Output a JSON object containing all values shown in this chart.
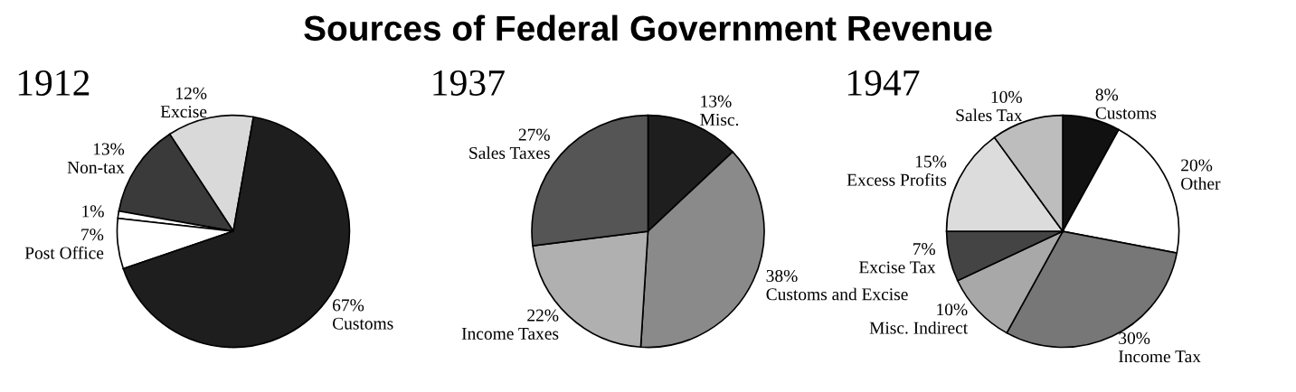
{
  "chart_data": [
    {
      "type": "other",
      "title": "Sources of Federal Government Revenue"
    },
    {
      "type": "pie",
      "title": "1912",
      "categories": [
        "Excise",
        "Non-tax",
        null,
        "Post Office",
        "Customs"
      ],
      "values": [
        12,
        13,
        1,
        7,
        67
      ],
      "value_labels": [
        "12%",
        "13%",
        "1%",
        "7%",
        "67%"
      ],
      "colors": [
        "#d9d9d9",
        "#3a3a3a",
        "#ffffff",
        "#ffffff",
        "#1e1e1e"
      ]
    },
    {
      "type": "pie",
      "title": "1937",
      "categories": [
        "Misc.",
        "Customs and Excise",
        "Income Taxes",
        "Sales Taxes"
      ],
      "values": [
        13,
        38,
        22,
        27
      ],
      "value_labels": [
        "13%",
        "38%",
        "22%",
        "27%"
      ],
      "colors": [
        "#1e1e1e",
        "#8a8a8a",
        "#b0b0b0",
        "#555555"
      ]
    },
    {
      "type": "pie",
      "title": "1947",
      "categories": [
        "Customs",
        "Other",
        "Income Tax",
        "Misc. Indirect",
        "Excise Tax",
        "Excess Profits",
        "Sales Tax"
      ],
      "values": [
        8,
        20,
        30,
        10,
        7,
        15,
        10
      ],
      "value_labels": [
        "8%",
        "20%",
        "30%",
        "10%",
        "7%",
        "15%",
        "10%"
      ],
      "colors": [
        "#111111",
        "#ffffff",
        "#777777",
        "#a8a8a8",
        "#444444",
        "#dcdcdc",
        "#bdbdbd"
      ]
    }
  ]
}
